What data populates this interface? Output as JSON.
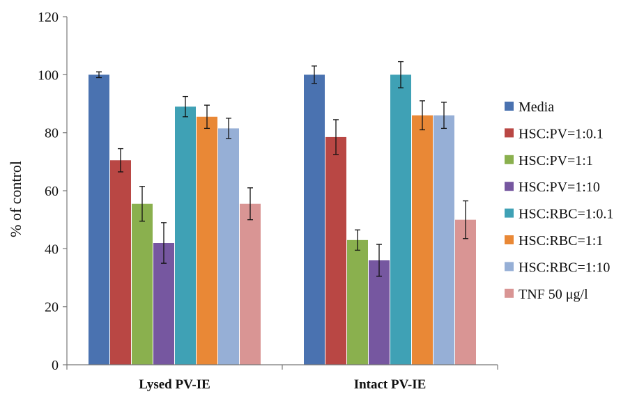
{
  "chart_data": {
    "type": "bar",
    "categories": [
      "Lysed PV-IE",
      "Intact PV-IE"
    ],
    "ylabel": "% of control",
    "ylim": [
      0,
      120
    ],
    "yticks": [
      0,
      20,
      40,
      60,
      80,
      100,
      120
    ],
    "legend_position": "right",
    "grid": false,
    "series": [
      {
        "name": "Media",
        "color": "#4a72b0",
        "values": [
          100,
          100
        ],
        "errors": [
          1.0,
          3.0
        ]
      },
      {
        "name": "HSC:PV=1:0.1",
        "color": "#b94744",
        "values": [
          70.5,
          78.5
        ],
        "errors": [
          4.0,
          6.0
        ]
      },
      {
        "name": "HSC:PV=1:1",
        "color": "#8ab04e",
        "values": [
          55.5,
          43
        ],
        "errors": [
          6.0,
          3.5
        ]
      },
      {
        "name": "HSC:PV=1:10",
        "color": "#7657a0",
        "values": [
          42,
          36
        ],
        "errors": [
          7.0,
          5.5
        ]
      },
      {
        "name": "HSC:RBC=1:0.1",
        "color": "#3fa1b5",
        "values": [
          89,
          100
        ],
        "errors": [
          3.5,
          4.5
        ]
      },
      {
        "name": "HSC:RBC=1:1",
        "color": "#e98836",
        "values": [
          85.5,
          86
        ],
        "errors": [
          4.0,
          5.0
        ]
      },
      {
        "name": "HSC:RBC=1:10",
        "color": "#96afd6",
        "values": [
          81.5,
          86
        ],
        "errors": [
          3.5,
          4.5
        ]
      },
      {
        "name": "TNF 50 μg/l",
        "color": "#d99594",
        "values": [
          55.5,
          50
        ],
        "errors": [
          5.5,
          6.5
        ]
      }
    ]
  }
}
